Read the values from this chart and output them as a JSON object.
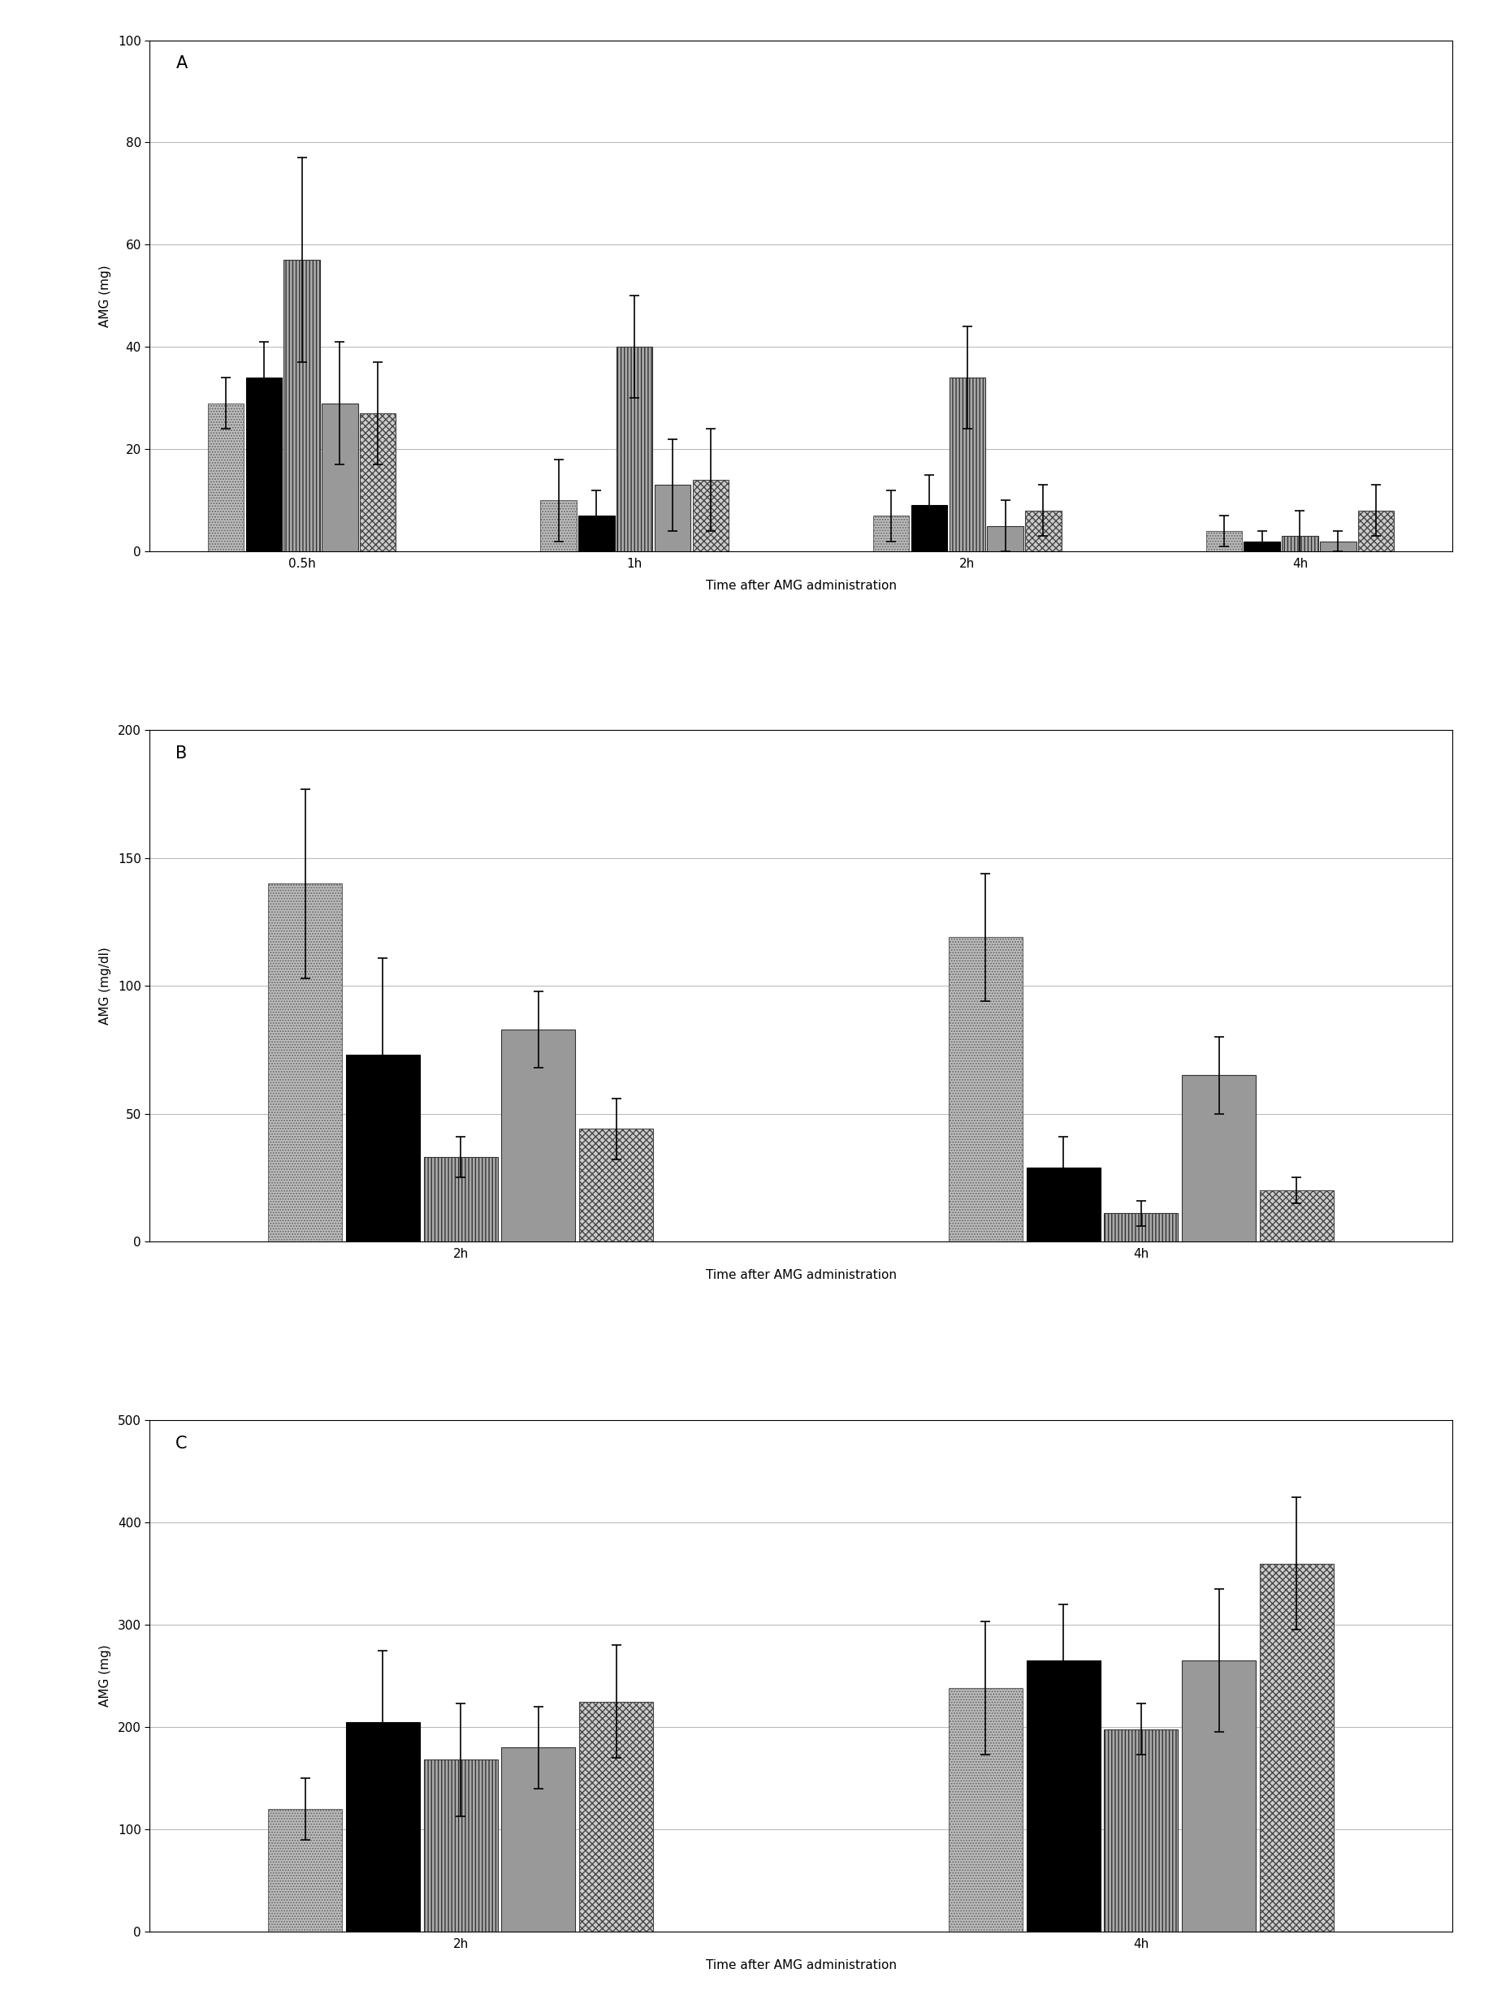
{
  "panel_A": {
    "label": "A",
    "ylabel": "AMG (mg)",
    "xlabel": "Time after AMG administration",
    "xtick_labels": [
      "0.5h",
      "1h",
      "2h",
      "4h"
    ],
    "ylim": [
      0,
      100
    ],
    "yticks": [
      0,
      20,
      40,
      60,
      80,
      100
    ],
    "n_groups": 4,
    "values": [
      [
        29,
        34,
        57,
        29,
        27
      ],
      [
        10,
        7,
        40,
        13,
        14
      ],
      [
        7,
        9,
        34,
        5,
        8
      ],
      [
        4,
        2,
        3,
        2,
        8
      ]
    ],
    "errors": [
      [
        5,
        7,
        20,
        12,
        10
      ],
      [
        8,
        5,
        10,
        9,
        10
      ],
      [
        5,
        6,
        10,
        5,
        5
      ],
      [
        3,
        2,
        5,
        2,
        5
      ]
    ]
  },
  "panel_B": {
    "label": "B",
    "ylabel": "AMG (mg/dl)",
    "xlabel": "Time after AMG administration",
    "xtick_labels": [
      "2h",
      "4h"
    ],
    "ylim": [
      0,
      200
    ],
    "yticks": [
      0,
      50,
      100,
      150,
      200
    ],
    "n_groups": 2,
    "values": [
      [
        140,
        73,
        33,
        83,
        44
      ],
      [
        119,
        29,
        11,
        65,
        20
      ]
    ],
    "errors": [
      [
        37,
        38,
        8,
        15,
        12
      ],
      [
        25,
        12,
        5,
        15,
        5
      ]
    ]
  },
  "panel_C": {
    "label": "C",
    "ylabel": "AMG (mg)",
    "xlabel": "Time after AMG administration",
    "xtick_labels": [
      "2h",
      "4h"
    ],
    "ylim": [
      0,
      500
    ],
    "yticks": [
      0,
      100,
      200,
      300,
      400,
      500
    ],
    "n_groups": 2,
    "values": [
      [
        120,
        205,
        168,
        180,
        225
      ],
      [
        238,
        265,
        198,
        265,
        360
      ]
    ],
    "errors": [
      [
        30,
        70,
        55,
        40,
        55
      ],
      [
        65,
        55,
        25,
        70,
        65
      ]
    ]
  },
  "figure_bg": "#ffffff",
  "font_size": 11,
  "label_font_size": 15,
  "tick_font_size": 11
}
